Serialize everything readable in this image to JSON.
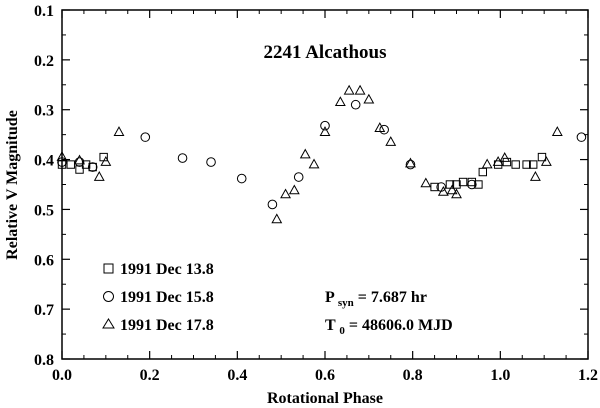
{
  "chart_data": {
    "type": "scatter",
    "title": "2241 Alcathous",
    "xlabel": "Rotational Phase",
    "ylabel": "Relative V Magnitude",
    "xlim": [
      0.0,
      1.2
    ],
    "ylim": [
      0.1,
      0.8
    ],
    "y_inverted": true,
    "grid": false,
    "legend_position": "bottom-left",
    "x_ticks": [
      0.0,
      0.2,
      0.4,
      0.6,
      0.8,
      1.0,
      1.2
    ],
    "x_tick_labels": [
      "0.0",
      "0.2",
      "0.4",
      "0.6",
      "0.8",
      "1.0",
      "1.2"
    ],
    "y_ticks": [
      0.1,
      0.2,
      0.3,
      0.4,
      0.5,
      0.6,
      0.7,
      0.8
    ],
    "y_tick_labels": [
      "0.1",
      "0.2",
      "0.3",
      "0.4",
      "0.5",
      "0.6",
      "0.7",
      "0.8"
    ],
    "series": [
      {
        "name": "1991 Dec 13.8",
        "marker": "square",
        "points": [
          [
            0.0,
            0.41
          ],
          [
            0.02,
            0.41
          ],
          [
            0.04,
            0.42
          ],
          [
            0.055,
            0.41
          ],
          [
            0.07,
            0.415
          ],
          [
            0.095,
            0.395
          ],
          [
            0.85,
            0.455
          ],
          [
            0.885,
            0.45
          ],
          [
            0.9,
            0.45
          ],
          [
            0.915,
            0.445
          ],
          [
            0.935,
            0.445
          ],
          [
            0.95,
            0.45
          ],
          [
            0.96,
            0.425
          ],
          [
            0.995,
            0.41
          ],
          [
            1.015,
            0.405
          ],
          [
            1.035,
            0.41
          ],
          [
            1.06,
            0.41
          ],
          [
            1.075,
            0.41
          ],
          [
            1.095,
            0.395
          ]
        ]
      },
      {
        "name": "1991 Dec 15.8",
        "marker": "circle",
        "points": [
          [
            0.0,
            0.405
          ],
          [
            0.04,
            0.405
          ],
          [
            0.07,
            0.415
          ],
          [
            0.19,
            0.355
          ],
          [
            0.275,
            0.397
          ],
          [
            0.34,
            0.405
          ],
          [
            0.41,
            0.438
          ],
          [
            0.48,
            0.49
          ],
          [
            0.54,
            0.435
          ],
          [
            0.6,
            0.332
          ],
          [
            0.67,
            0.29
          ],
          [
            0.735,
            0.34
          ],
          [
            0.795,
            0.41
          ],
          [
            0.865,
            0.455
          ],
          [
            0.935,
            0.45
          ],
          [
            1.185,
            0.355
          ]
        ]
      },
      {
        "name": "1991 Dec 17.8",
        "marker": "triangle",
        "points": [
          [
            0.0,
            0.395
          ],
          [
            0.04,
            0.402
          ],
          [
            0.085,
            0.435
          ],
          [
            0.1,
            0.405
          ],
          [
            0.13,
            0.345
          ],
          [
            0.49,
            0.52
          ],
          [
            0.51,
            0.47
          ],
          [
            0.53,
            0.462
          ],
          [
            0.555,
            0.39
          ],
          [
            0.575,
            0.41
          ],
          [
            0.6,
            0.345
          ],
          [
            0.635,
            0.285
          ],
          [
            0.655,
            0.262
          ],
          [
            0.68,
            0.262
          ],
          [
            0.7,
            0.28
          ],
          [
            0.725,
            0.337
          ],
          [
            0.75,
            0.365
          ],
          [
            0.795,
            0.408
          ],
          [
            0.83,
            0.448
          ],
          [
            0.87,
            0.465
          ],
          [
            0.89,
            0.462
          ],
          [
            0.9,
            0.47
          ],
          [
            0.97,
            0.41
          ],
          [
            0.995,
            0.405
          ],
          [
            1.01,
            0.397
          ],
          [
            1.08,
            0.435
          ],
          [
            1.105,
            0.405
          ],
          [
            1.13,
            0.345
          ]
        ]
      }
    ],
    "annotations": {
      "psyn_label": "P",
      "psyn_sub": "syn",
      "psyn_value": " = 7.687 hr",
      "t0_label": "T",
      "t0_sub": "0",
      "t0_value": " = 48606.0 MJD"
    }
  }
}
